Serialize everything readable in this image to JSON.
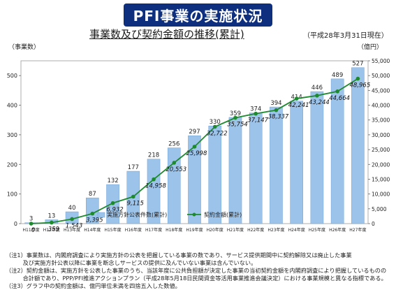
{
  "header": {
    "title": "PFI事業の実施状況",
    "subtitle": "事業数及び契約金額の推移(累計)",
    "as_of": "（平成28年3月31日現在）"
  },
  "chart_data": {
    "type": "bar",
    "categories": [
      "H11年度",
      "H12年度",
      "H13年度",
      "H14年度",
      "H15年度",
      "H16年度",
      "H17年度",
      "H18年度",
      "H19年度",
      "H20年度",
      "H21年度",
      "H22年度",
      "H23年度",
      "H24年度",
      "H25年度",
      "H26年度",
      "H27年度"
    ],
    "series": [
      {
        "name": "実施方針公表件数(累計)",
        "type": "bar",
        "axis": "left",
        "color": "#9cc3ea",
        "values": [
          3,
          13,
          40,
          87,
          132,
          177,
          218,
          256,
          297,
          330,
          359,
          374,
          394,
          414,
          446,
          489,
          527
        ]
      },
      {
        "name": "契約金額(累計)",
        "type": "line",
        "axis": "right",
        "color": "#1e8a2e",
        "values": [
          0,
          359,
          1543,
          3395,
          6932,
          9115,
          14958,
          20553,
          25998,
          32722,
          35754,
          37147,
          38337,
          42241,
          43244,
          44664,
          48965
        ],
        "labels": [
          "0",
          "359",
          "1,543",
          "3,395",
          "6,932",
          "9,115",
          "14,958",
          "20,553",
          "25,998",
          "32,722",
          "35,754",
          "37,147",
          "38,337",
          "42,241",
          "43,244",
          "44,664",
          "48,965"
        ]
      }
    ],
    "y_left": {
      "label": "（事業数）",
      "ticks": [
        0,
        100,
        200,
        300,
        400,
        500
      ],
      "range": [
        0,
        550
      ]
    },
    "y_right": {
      "label": "（億円）",
      "ticks": [
        "0",
        "5,000",
        "10,000",
        "15,000",
        "20,000",
        "25,000",
        "30,000",
        "35,000",
        "40,000",
        "45,000",
        "50,000",
        "55,000"
      ],
      "range": [
        0,
        55000
      ]
    },
    "legend_position": "bottom-center"
  },
  "notes": [
    "（注1）事業数は、内閣府調査により実施方針の公表を把握している事業の数であり、サービス提供期間中に契約解除又は廃止した事業",
    "　　　及び実施方針公表以降に事業を断念しサービスの提供に及んでいない事業は含んでいない。",
    "（注2）契約金額は、実施方針を公表した事業のうち、当該年度に公共負担額が決定した事業の当初契約金額を内閣府調査により把握しているものの",
    "　　　合計額であり、PPP/PFI推進アクションプラン（平成28年5月18日民間資金等活用事業推進会議決定）における事業規模と異なる指標である。",
    "（注3）グラフ中の契約金額は、億円単位未満を四捨五入した数値。"
  ]
}
